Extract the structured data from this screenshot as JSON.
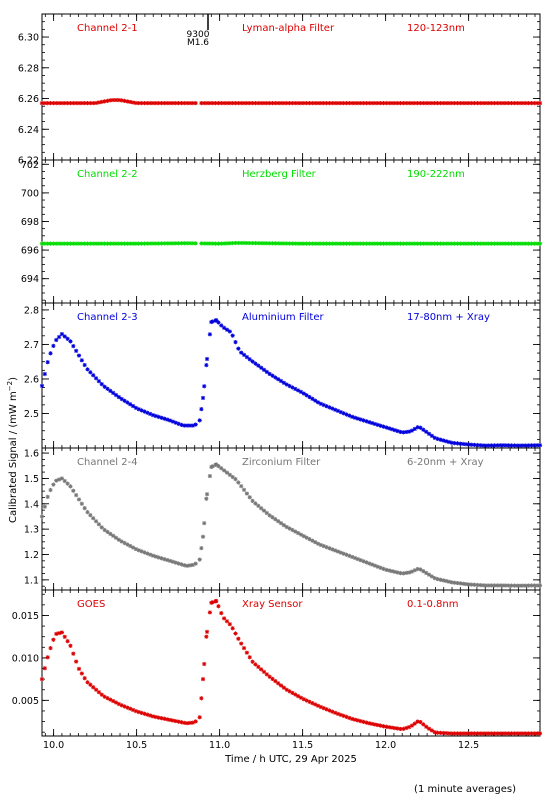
{
  "figure": {
    "ylabel": "Calibrated Signal / (mW m",
    "ylabel_sup": "−2",
    "ylabel_end": ")",
    "xlabel": "Time / h UTC, 29 Apr 2025",
    "footnote": "(1 minute averages)",
    "event_marker": {
      "x": 10.93,
      "label_top": "9300",
      "label_bottom": "M1.6"
    }
  },
  "chart_data": [
    {
      "type": "scatter",
      "channel": "Channel 2-1",
      "filter": "Lyman-alpha Filter",
      "band": "120-123nm",
      "color": "#dd0000",
      "xlim": [
        9.93,
        12.93
      ],
      "ylim": [
        6.22,
        6.315
      ],
      "yticks": [
        6.22,
        6.24,
        6.26,
        6.28,
        6.3
      ],
      "ytick_labels": [
        "6.22",
        "6.24",
        "6.26",
        "6.28",
        "6.30"
      ],
      "points": [
        [
          9.95,
          6.257
        ],
        [
          10.1,
          6.257
        ],
        [
          10.25,
          6.257
        ],
        [
          10.3,
          6.258
        ],
        [
          10.35,
          6.259
        ],
        [
          10.4,
          6.259
        ],
        [
          10.45,
          6.258
        ],
        [
          10.5,
          6.257
        ],
        [
          11.0,
          6.257
        ],
        [
          11.5,
          6.257
        ],
        [
          12.0,
          6.257
        ],
        [
          12.5,
          6.257
        ],
        [
          12.93,
          6.257
        ]
      ]
    },
    {
      "type": "scatter",
      "channel": "Channel 2-2",
      "filter": "Herzberg Filter",
      "band": "190-222nm",
      "color": "#00dd00",
      "xlim": [
        9.93,
        12.93
      ],
      "ylim": [
        692.3,
        702.3
      ],
      "yticks": [
        694,
        696,
        698,
        700,
        702
      ],
      "ytick_labels": [
        "694",
        "696",
        "698",
        "700",
        "702"
      ],
      "points": [
        [
          9.95,
          696.45
        ],
        [
          10.5,
          696.45
        ],
        [
          10.8,
          696.48
        ],
        [
          11.0,
          696.45
        ],
        [
          11.1,
          696.5
        ],
        [
          11.5,
          696.45
        ],
        [
          12.0,
          696.45
        ],
        [
          12.5,
          696.45
        ],
        [
          12.93,
          696.45
        ]
      ]
    },
    {
      "type": "scatter",
      "channel": "Channel 2-3",
      "filter": "Aluminium Filter",
      "band": "17-80nm + Xray",
      "color": "#0000dd",
      "xlim": [
        9.93,
        12.93
      ],
      "ylim": [
        2.4,
        2.82
      ],
      "yticks": [
        2.5,
        2.6,
        2.7,
        2.8
      ],
      "ytick_labels": [
        "2.5",
        "2.6",
        "2.7",
        "2.8"
      ],
      "points": [
        [
          9.93,
          2.58
        ],
        [
          9.97,
          2.66
        ],
        [
          10.01,
          2.71
        ],
        [
          10.05,
          2.73
        ],
        [
          10.1,
          2.71
        ],
        [
          10.15,
          2.67
        ],
        [
          10.2,
          2.63
        ],
        [
          10.3,
          2.58
        ],
        [
          10.4,
          2.545
        ],
        [
          10.5,
          2.515
        ],
        [
          10.6,
          2.495
        ],
        [
          10.7,
          2.48
        ],
        [
          10.78,
          2.465
        ],
        [
          10.85,
          2.465
        ],
        [
          10.88,
          2.48
        ],
        [
          10.9,
          2.545
        ],
        [
          10.92,
          2.64
        ],
        [
          10.95,
          2.765
        ],
        [
          10.98,
          2.77
        ],
        [
          11.02,
          2.75
        ],
        [
          11.07,
          2.735
        ],
        [
          11.12,
          2.68
        ],
        [
          11.2,
          2.65
        ],
        [
          11.3,
          2.615
        ],
        [
          11.4,
          2.585
        ],
        [
          11.5,
          2.56
        ],
        [
          11.6,
          2.53
        ],
        [
          11.7,
          2.51
        ],
        [
          11.8,
          2.49
        ],
        [
          11.9,
          2.475
        ],
        [
          12.0,
          2.46
        ],
        [
          12.1,
          2.445
        ],
        [
          12.15,
          2.448
        ],
        [
          12.2,
          2.462
        ],
        [
          12.25,
          2.445
        ],
        [
          12.3,
          2.428
        ],
        [
          12.4,
          2.415
        ],
        [
          12.5,
          2.41
        ],
        [
          12.6,
          2.407
        ],
        [
          12.7,
          2.408
        ],
        [
          12.8,
          2.407
        ],
        [
          12.93,
          2.408
        ]
      ]
    },
    {
      "type": "scatter",
      "channel": "Channel 2-4",
      "filter": "Zirconium Filter",
      "band": "6-20nm + Xray",
      "color": "#777777",
      "xlim": [
        9.93,
        12.93
      ],
      "ylim": [
        1.06,
        1.62
      ],
      "yticks": [
        1.1,
        1.2,
        1.3,
        1.4,
        1.5,
        1.6
      ],
      "ytick_labels": [
        "1.1",
        "1.2",
        "1.3",
        "1.4",
        "1.5",
        "1.6"
      ],
      "points": [
        [
          9.93,
          1.35
        ],
        [
          9.97,
          1.44
        ],
        [
          10.01,
          1.49
        ],
        [
          10.05,
          1.5
        ],
        [
          10.1,
          1.47
        ],
        [
          10.15,
          1.42
        ],
        [
          10.2,
          1.37
        ],
        [
          10.3,
          1.3
        ],
        [
          10.4,
          1.255
        ],
        [
          10.5,
          1.22
        ],
        [
          10.6,
          1.195
        ],
        [
          10.7,
          1.175
        ],
        [
          10.8,
          1.155
        ],
        [
          10.85,
          1.16
        ],
        [
          10.88,
          1.18
        ],
        [
          10.9,
          1.27
        ],
        [
          10.92,
          1.42
        ],
        [
          10.95,
          1.545
        ],
        [
          10.98,
          1.555
        ],
        [
          11.02,
          1.535
        ],
        [
          11.1,
          1.495
        ],
        [
          11.2,
          1.41
        ],
        [
          11.3,
          1.355
        ],
        [
          11.4,
          1.31
        ],
        [
          11.5,
          1.275
        ],
        [
          11.6,
          1.24
        ],
        [
          11.7,
          1.215
        ],
        [
          11.8,
          1.19
        ],
        [
          11.9,
          1.165
        ],
        [
          12.0,
          1.14
        ],
        [
          12.1,
          1.125
        ],
        [
          12.15,
          1.13
        ],
        [
          12.2,
          1.145
        ],
        [
          12.25,
          1.125
        ],
        [
          12.3,
          1.105
        ],
        [
          12.4,
          1.09
        ],
        [
          12.5,
          1.082
        ],
        [
          12.6,
          1.078
        ],
        [
          12.7,
          1.078
        ],
        [
          12.8,
          1.077
        ],
        [
          12.93,
          1.078
        ]
      ]
    },
    {
      "type": "scatter",
      "channel": "GOES",
      "filter": "Xray Sensor",
      "band": "0.1-0.8nm",
      "color": "#dd0000",
      "xlim": [
        9.93,
        12.93
      ],
      "ylim": [
        0.0008,
        0.018
      ],
      "yticks": [
        0.005,
        0.01,
        0.015
      ],
      "ytick_labels": [
        "0.005",
        "0.010",
        "0.015"
      ],
      "points": [
        [
          9.93,
          0.0075
        ],
        [
          9.97,
          0.0105
        ],
        [
          10.01,
          0.0128
        ],
        [
          10.05,
          0.013
        ],
        [
          10.1,
          0.0115
        ],
        [
          10.15,
          0.0088
        ],
        [
          10.2,
          0.0072
        ],
        [
          10.3,
          0.0055
        ],
        [
          10.4,
          0.0045
        ],
        [
          10.5,
          0.0037
        ],
        [
          10.6,
          0.0031
        ],
        [
          10.7,
          0.0027
        ],
        [
          10.8,
          0.0023
        ],
        [
          10.85,
          0.0024
        ],
        [
          10.88,
          0.003
        ],
        [
          10.9,
          0.0075
        ],
        [
          10.92,
          0.0125
        ],
        [
          10.95,
          0.0165
        ],
        [
          10.98,
          0.0167
        ],
        [
          11.02,
          0.0148
        ],
        [
          11.07,
          0.0138
        ],
        [
          11.12,
          0.012
        ],
        [
          11.2,
          0.0095
        ],
        [
          11.3,
          0.0078
        ],
        [
          11.4,
          0.0063
        ],
        [
          11.5,
          0.0052
        ],
        [
          11.6,
          0.0043
        ],
        [
          11.7,
          0.0035
        ],
        [
          11.8,
          0.0028
        ],
        [
          11.9,
          0.0023
        ],
        [
          12.0,
          0.0019
        ],
        [
          12.1,
          0.0016
        ],
        [
          12.15,
          0.0019
        ],
        [
          12.2,
          0.0026
        ],
        [
          12.25,
          0.0018
        ],
        [
          12.3,
          0.0012
        ],
        [
          12.4,
          0.0011
        ],
        [
          12.5,
          0.0011
        ],
        [
          12.6,
          0.0011
        ],
        [
          12.7,
          0.0011
        ],
        [
          12.8,
          0.0011
        ],
        [
          12.93,
          0.0011
        ]
      ]
    }
  ],
  "x_axis": {
    "ticks": [
      10.0,
      10.5,
      11.0,
      11.5,
      12.0,
      12.5
    ],
    "tick_labels": [
      "10.0",
      "10.5",
      "11.0",
      "11.5",
      "12.0",
      "12.5"
    ]
  }
}
